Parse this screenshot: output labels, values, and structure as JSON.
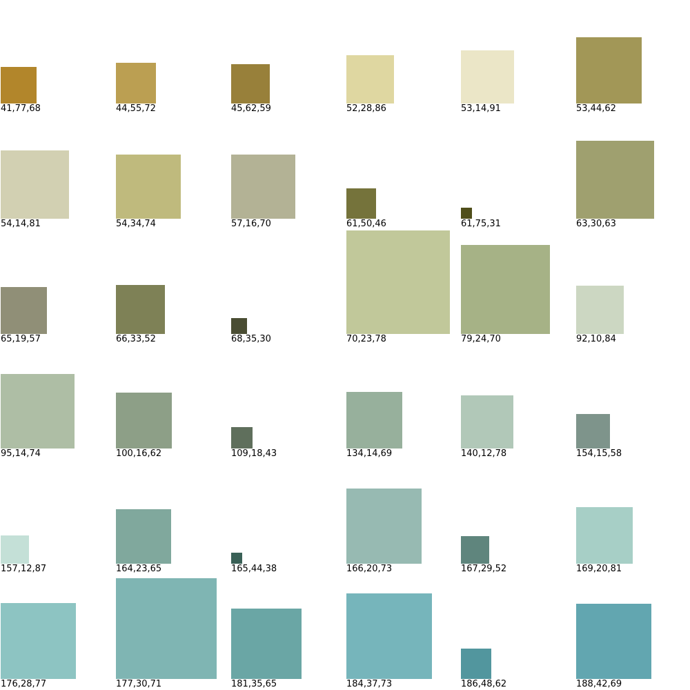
{
  "swatches": [
    {
      "label": "41,77,68",
      "color": "#b2862b"
    },
    {
      "label": "44,55,72",
      "color": "#bb9f52"
    },
    {
      "label": "45,62,59",
      "color": "#98803a"
    },
    {
      "label": "52,28,86",
      "color": "#dfd7a1"
    },
    {
      "label": "53,14,91",
      "color": "#ebe6c7"
    },
    {
      "label": "53,44,62",
      "color": "#a29757"
    },
    {
      "label": "54,14,81",
      "color": "#d2d0b2"
    },
    {
      "label": "54,34,74",
      "color": "#bfba7d"
    },
    {
      "label": "57,16,70",
      "color": "#b3b295"
    },
    {
      "label": "61,50,46",
      "color": "#75733b"
    },
    {
      "label": "61,75,31",
      "color": "#4f4e1a"
    },
    {
      "label": "63,30,63",
      "color": "#9fa06f"
    },
    {
      "label": "65,19,57",
      "color": "#908f77"
    },
    {
      "label": "66,33,52",
      "color": "#7e8156"
    },
    {
      "label": "68,35,30",
      "color": "#4a4d33"
    },
    {
      "label": "70,23,78",
      "color": "#c1c89a"
    },
    {
      "label": "79,24,70",
      "color": "#a6b286"
    },
    {
      "label": "92,10,84",
      "color": "#ccd7c2"
    },
    {
      "label": "95,14,74",
      "color": "#aebea5"
    },
    {
      "label": "100,16,62",
      "color": "#8d9f87"
    },
    {
      "label": "109,18,43",
      "color": "#5f6f5c"
    },
    {
      "label": "134,14,69",
      "color": "#97b09c"
    },
    {
      "label": "140,12,78",
      "color": "#b1c8b8"
    },
    {
      "label": "154,15,58",
      "color": "#7e948b"
    },
    {
      "label": "157,12,87",
      "color": "#c4e0d7"
    },
    {
      "label": "164,23,65",
      "color": "#80a89d"
    },
    {
      "label": "165,44,38",
      "color": "#3a6157"
    },
    {
      "label": "166,20,73",
      "color": "#97bab2"
    },
    {
      "label": "167,29,52",
      "color": "#5f857d"
    },
    {
      "label": "169,20,81",
      "color": "#a7cfc6"
    },
    {
      "label": "176,28,77",
      "color": "#8dc4c2"
    },
    {
      "label": "177,30,71",
      "color": "#7fb5b3"
    },
    {
      "label": "181,35,65",
      "color": "#6aa6a5"
    },
    {
      "label": "184,37,73",
      "color": "#76b5bb"
    },
    {
      "label": "186,48,62",
      "color": "#52969e"
    },
    {
      "label": "188,42,69",
      "color": "#62a6b0"
    }
  ]
}
